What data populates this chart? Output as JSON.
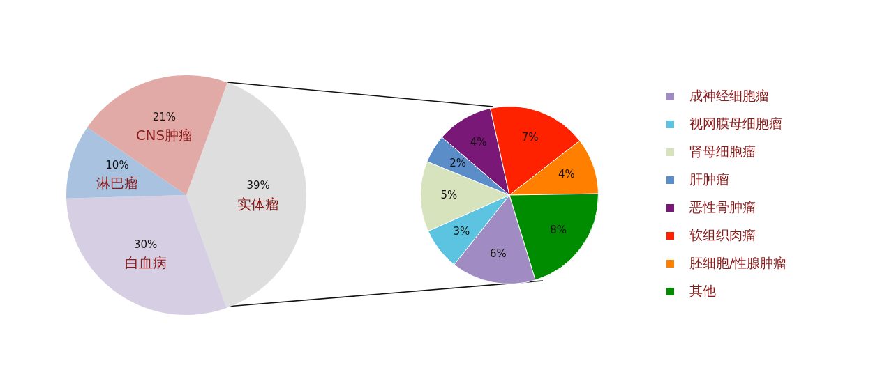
{
  "chart_data": [
    {
      "type": "pie",
      "categories": [
        "实体瘤",
        "白血病",
        "淋巴瘤",
        "CNS肿瘤"
      ],
      "values": [
        39,
        30,
        10,
        21
      ],
      "colors": [
        "#dedede",
        "#d6cfe3",
        "#a9c2df",
        "#e2aaa6"
      ],
      "value_labels": [
        "39%",
        "30%",
        "10%",
        "21%"
      ],
      "legend": false
    },
    {
      "type": "pie",
      "categories": [
        "成神经细胞瘤",
        "视网膜母细胞瘤",
        "肾母细胞瘤",
        "肝肿瘤",
        "恶性骨肿瘤",
        "软组织肉瘤",
        "胚细胞/性腺肿瘤",
        "其他"
      ],
      "values": [
        6,
        3,
        5,
        2,
        4,
        7,
        4,
        8
      ],
      "colors": [
        "#a08cc2",
        "#5cc3e0",
        "#d7e3bd",
        "#5b8dc9",
        "#7a1878",
        "#ff2200",
        "#ff8000",
        "#008c00"
      ],
      "value_labels": [
        "6%",
        "3%",
        "5%",
        "2%",
        "4%",
        "7%",
        "4%",
        "8%"
      ],
      "legend": "right"
    }
  ]
}
